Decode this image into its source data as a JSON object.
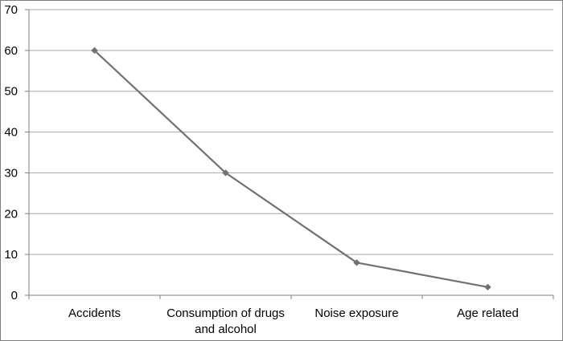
{
  "chart_data": {
    "type": "line",
    "categories": [
      [
        "Accidents"
      ],
      [
        "Consumption of drugs",
        "and alcohol"
      ],
      [
        "Noise exposure"
      ],
      [
        "Age related"
      ]
    ],
    "values": [
      60,
      30,
      8,
      2
    ],
    "ylim": [
      0,
      70
    ],
    "yticks": [
      "0",
      "10",
      "20",
      "30",
      "40",
      "50",
      "60",
      "70"
    ],
    "grid": true,
    "legend": "none",
    "colors": {
      "line": "#717171",
      "marker": "#717171",
      "grid": "#a6a6a6",
      "axis": "#7f7f7f",
      "border": "#7f7f7f"
    }
  }
}
